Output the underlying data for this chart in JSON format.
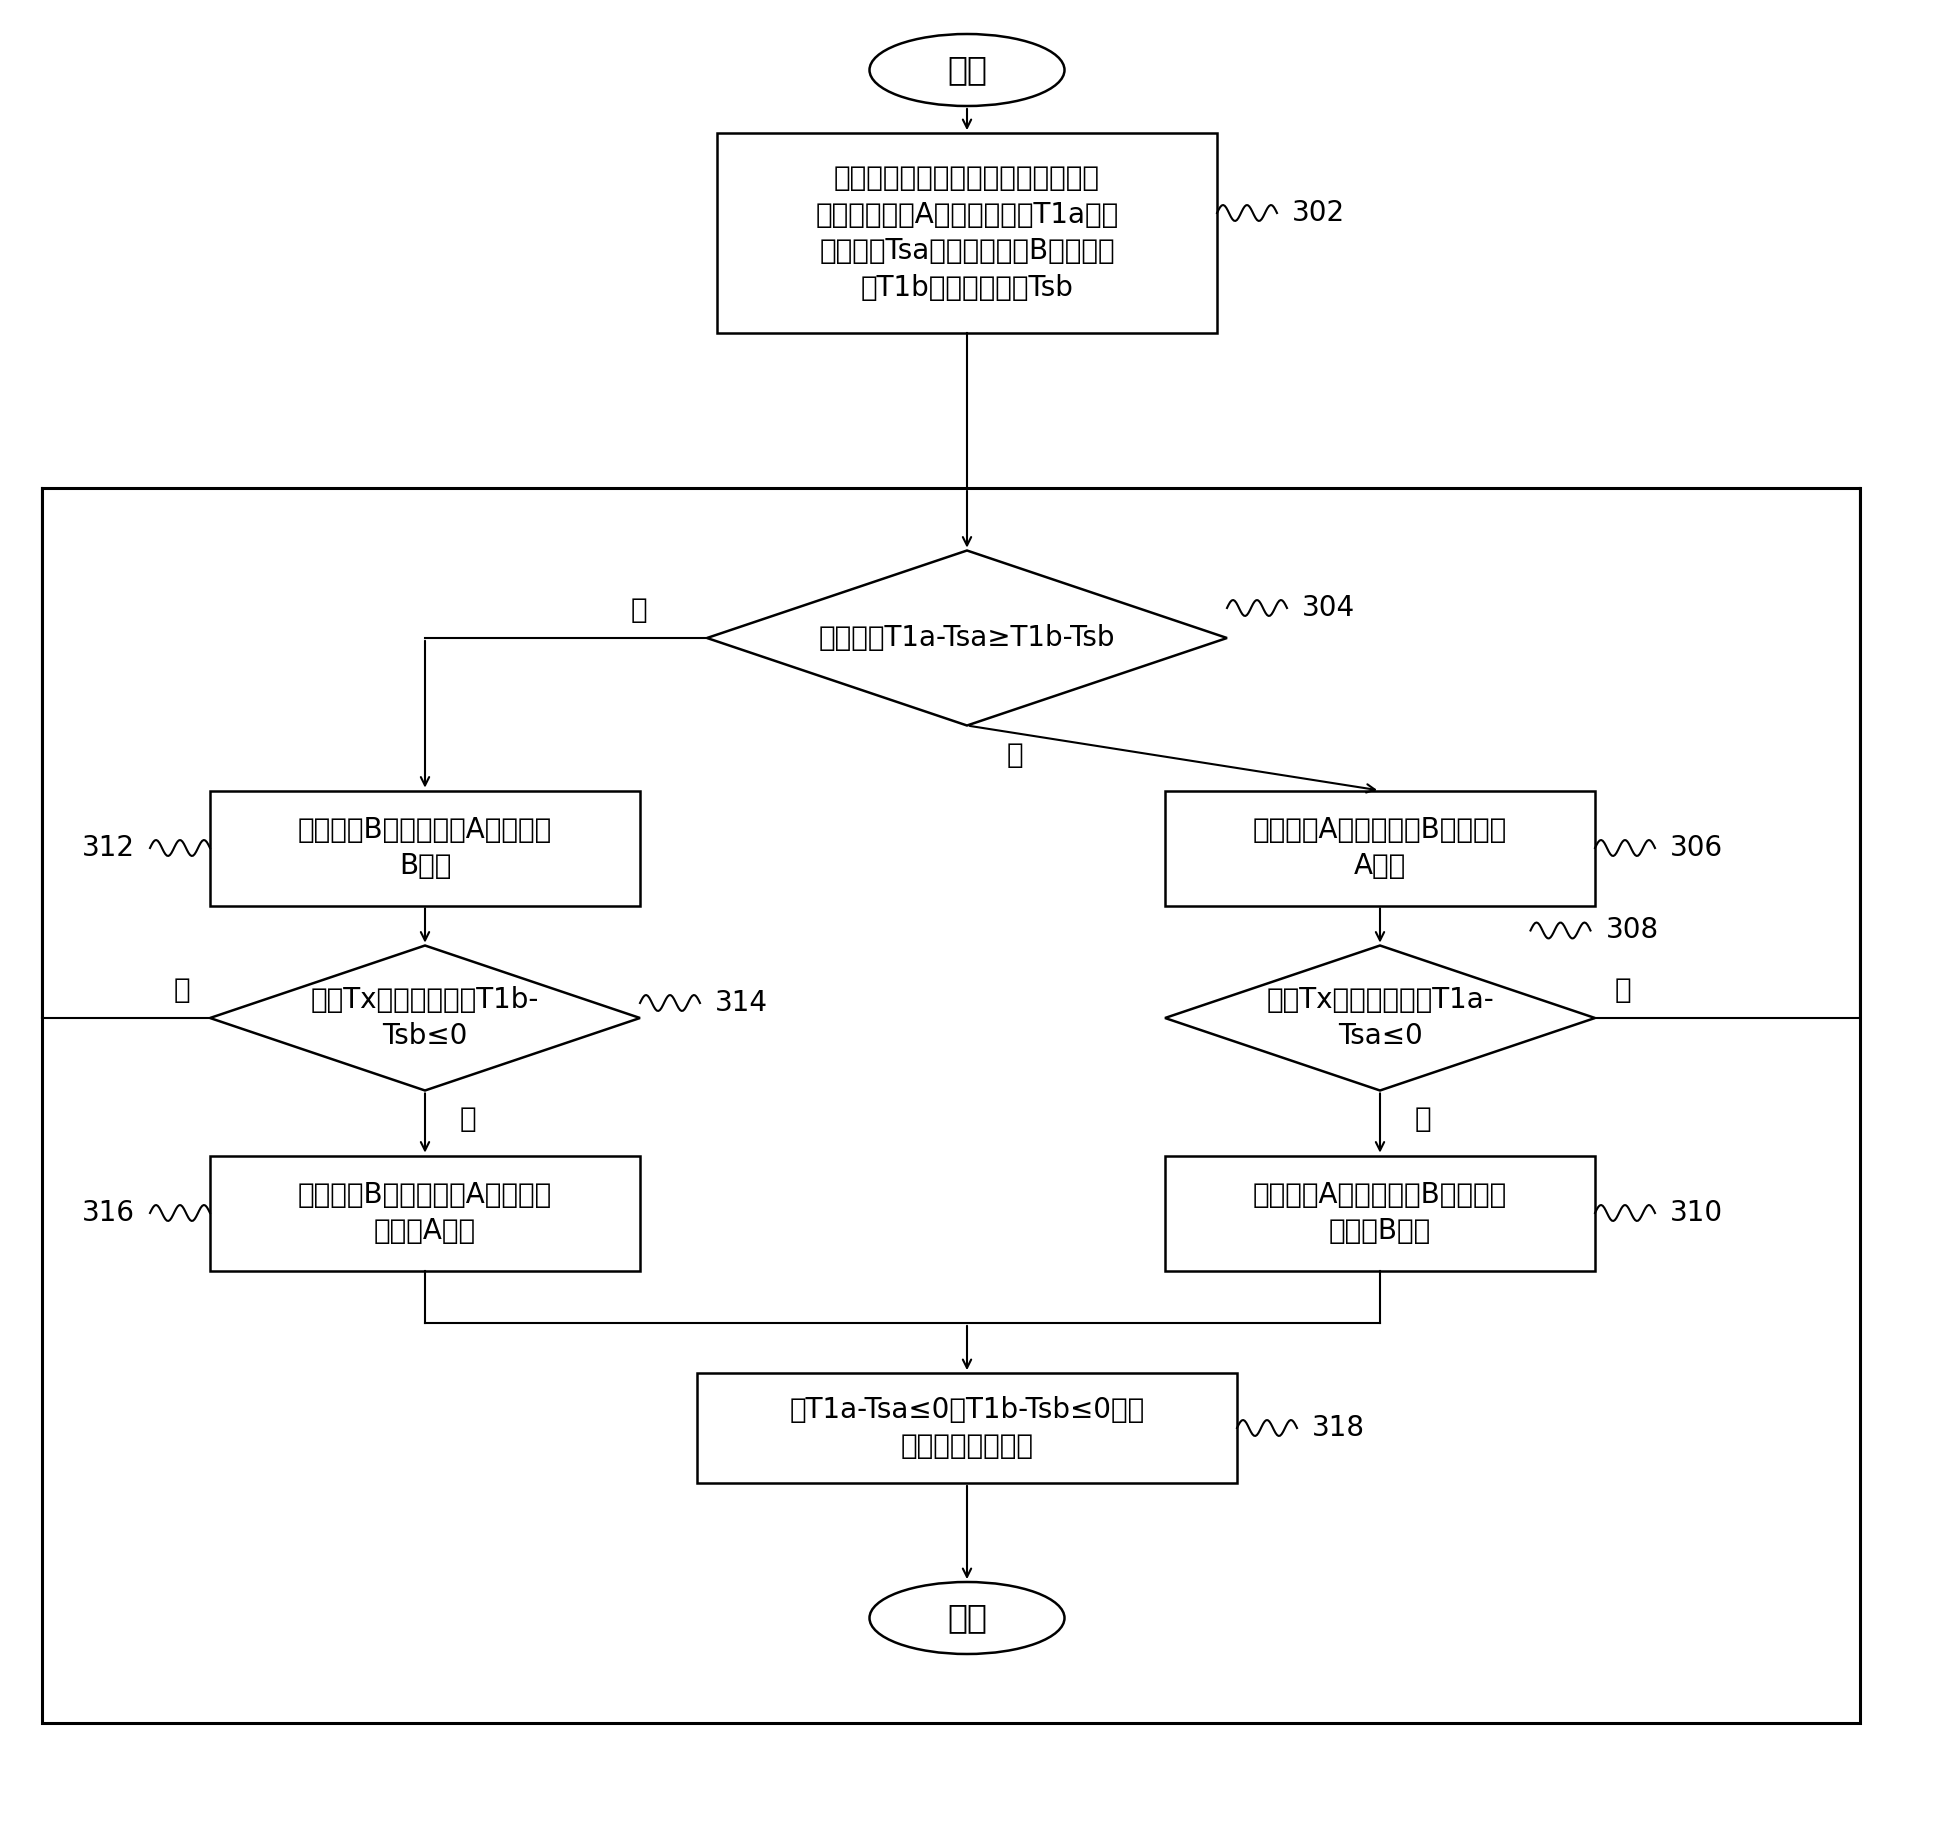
{
  "fig_width": 19.34,
  "fig_height": 18.28,
  "bg_color": "#ffffff",
  "start_text": "开始",
  "end_text": "结束",
  "box302_text": "两个室内机都接收到制冷信号时，立\n刻检测室内机A的环境温度值T1a和设\n定温度值Tsa，以及室内机B环境温度\n值T1b和设定温度值Tsb",
  "d304_text": "判断是否T1a-Tsa≥T1b-Tsb",
  "box306_text": "开电磁阀A，关电磁阀B，室内机\nA制冷",
  "box312_text": "开电磁阀B，关电磁阀A，室内机\nB制冷",
  "d308_text": "时间Tx之内是否满足T1a-\nTsa≤0",
  "d314_text": "时间Tx之内是否满足T1b-\nTsb≤0",
  "box310_text": "关电磁阀A，开电磁阀B，此时换\n室内机B工作",
  "box316_text": "关电磁阀B，开电磁阀A，此时换\n室内机A工作",
  "box318_text": "当T1a-Tsa≤0且T1b-Tsb≤0时，\n进入达温停机状态",
  "yes_label": "是",
  "no_label": "否",
  "refs": [
    "302",
    "304",
    "306",
    "308",
    "310",
    "312",
    "314",
    "316",
    "318"
  ]
}
